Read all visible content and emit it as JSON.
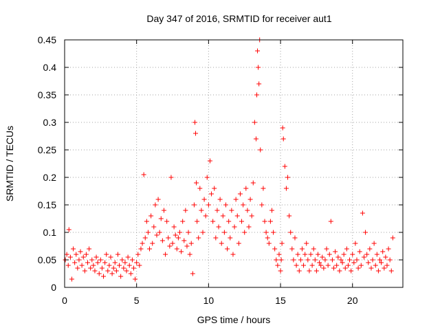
{
  "chart_data": {
    "type": "scatter",
    "title": "Day 347 of 2016, SRMTID for receiver aut1",
    "xlabel": "GPS time / hours",
    "ylabel": "SRMTID / TECUs",
    "xlim": [
      0,
      23.5
    ],
    "ylim": [
      0,
      0.45
    ],
    "xticks": [
      0,
      5,
      10,
      15,
      20
    ],
    "yticks": [
      0,
      0.05,
      0.1,
      0.15,
      0.2,
      0.25,
      0.3,
      0.35,
      0.4,
      0.45
    ],
    "xtick_labels": [
      "0",
      "5",
      "10",
      "15",
      "20"
    ],
    "ytick_labels": [
      "0",
      "0.05",
      "0.1",
      "0.15",
      "0.2",
      "0.25",
      "0.3",
      "0.35",
      "0.4",
      "0.45"
    ],
    "grid": true,
    "marker": "+",
    "color": "#ff0000",
    "series": [
      {
        "name": "aut1",
        "x": [
          0.05,
          0.15,
          0.25,
          0.3,
          0.4,
          0.5,
          0.6,
          0.7,
          0.8,
          0.9,
          1.0,
          1.1,
          1.2,
          1.3,
          1.4,
          1.5,
          1.6,
          1.7,
          1.8,
          1.9,
          2.0,
          2.1,
          2.2,
          2.3,
          2.4,
          2.5,
          2.6,
          2.7,
          2.8,
          2.9,
          3.0,
          3.1,
          3.2,
          3.3,
          3.4,
          3.5,
          3.6,
          3.7,
          3.8,
          3.9,
          4.0,
          4.1,
          4.2,
          4.3,
          4.4,
          4.5,
          4.6,
          4.7,
          4.8,
          4.9,
          5.0,
          5.1,
          5.2,
          5.3,
          5.4,
          5.5,
          5.6,
          5.7,
          5.8,
          5.9,
          6.0,
          6.1,
          6.2,
          6.3,
          6.4,
          6.5,
          6.6,
          6.7,
          6.8,
          6.9,
          7.0,
          7.1,
          7.2,
          7.3,
          7.4,
          7.5,
          7.6,
          7.7,
          7.8,
          7.9,
          8.0,
          8.1,
          8.2,
          8.3,
          8.4,
          8.5,
          8.6,
          8.7,
          8.8,
          8.9,
          9.0,
          9.05,
          9.1,
          9.15,
          9.2,
          9.3,
          9.4,
          9.5,
          9.6,
          9.7,
          9.8,
          9.9,
          10.0,
          10.1,
          10.2,
          10.3,
          10.4,
          10.5,
          10.6,
          10.7,
          10.8,
          10.9,
          11.0,
          11.1,
          11.2,
          11.3,
          11.4,
          11.5,
          11.6,
          11.7,
          11.8,
          11.9,
          12.0,
          12.1,
          12.2,
          12.3,
          12.4,
          12.5,
          12.6,
          12.7,
          12.8,
          12.9,
          13.0,
          13.1,
          13.2,
          13.3,
          13.35,
          13.4,
          13.45,
          13.5,
          13.55,
          13.6,
          13.7,
          13.8,
          13.9,
          14.0,
          14.1,
          14.2,
          14.3,
          14.4,
          14.5,
          14.6,
          14.7,
          14.8,
          14.9,
          15.0,
          15.05,
          15.1,
          15.15,
          15.2,
          15.3,
          15.4,
          15.5,
          15.6,
          15.7,
          15.8,
          15.9,
          16.0,
          16.1,
          16.2,
          16.3,
          16.4,
          16.5,
          16.6,
          16.7,
          16.8,
          16.9,
          17.0,
          17.1,
          17.2,
          17.3,
          17.4,
          17.5,
          17.6,
          17.7,
          17.8,
          17.9,
          18.0,
          18.1,
          18.2,
          18.3,
          18.4,
          18.5,
          18.6,
          18.7,
          18.8,
          18.9,
          19.0,
          19.1,
          19.2,
          19.3,
          19.4,
          19.5,
          19.6,
          19.7,
          19.8,
          19.9,
          20.0,
          20.1,
          20.2,
          20.3,
          20.4,
          20.5,
          20.6,
          20.7,
          20.8,
          20.9,
          21.0,
          21.1,
          21.2,
          21.3,
          21.4,
          21.5,
          21.6,
          21.7,
          21.8,
          21.9,
          22.0,
          22.1,
          22.2,
          22.3,
          22.4,
          22.5,
          22.6,
          22.7,
          22.8
        ],
        "y": [
          0.05,
          0.06,
          0.04,
          0.105,
          0.055,
          0.015,
          0.07,
          0.045,
          0.06,
          0.035,
          0.05,
          0.065,
          0.04,
          0.055,
          0.03,
          0.06,
          0.045,
          0.07,
          0.035,
          0.05,
          0.04,
          0.03,
          0.055,
          0.045,
          0.025,
          0.05,
          0.035,
          0.02,
          0.045,
          0.06,
          0.03,
          0.04,
          0.055,
          0.025,
          0.035,
          0.045,
          0.03,
          0.06,
          0.04,
          0.02,
          0.05,
          0.035,
          0.045,
          0.03,
          0.055,
          0.04,
          0.025,
          0.05,
          0.035,
          0.015,
          0.045,
          0.06,
          0.04,
          0.07,
          0.08,
          0.205,
          0.09,
          0.12,
          0.1,
          0.07,
          0.13,
          0.08,
          0.11,
          0.15,
          0.095,
          0.16,
          0.1,
          0.125,
          0.085,
          0.14,
          0.06,
          0.12,
          0.09,
          0.075,
          0.2,
          0.08,
          0.11,
          0.095,
          0.07,
          0.09,
          0.1,
          0.065,
          0.12,
          0.085,
          0.14,
          0.075,
          0.1,
          0.06,
          0.08,
          0.025,
          0.15,
          0.3,
          0.28,
          0.19,
          0.12,
          0.09,
          0.18,
          0.14,
          0.1,
          0.16,
          0.13,
          0.2,
          0.15,
          0.23,
          0.17,
          0.12,
          0.18,
          0.09,
          0.14,
          0.11,
          0.16,
          0.08,
          0.13,
          0.1,
          0.15,
          0.07,
          0.12,
          0.09,
          0.14,
          0.06,
          0.11,
          0.16,
          0.13,
          0.08,
          0.17,
          0.12,
          0.15,
          0.1,
          0.18,
          0.14,
          0.11,
          0.16,
          0.13,
          0.19,
          0.3,
          0.27,
          0.35,
          0.43,
          0.4,
          0.37,
          0.45,
          0.25,
          0.15,
          0.18,
          0.12,
          0.1,
          0.09,
          0.08,
          0.12,
          0.14,
          0.1,
          0.07,
          0.05,
          0.04,
          0.06,
          0.03,
          0.05,
          0.08,
          0.29,
          0.27,
          0.22,
          0.18,
          0.2,
          0.13,
          0.1,
          0.07,
          0.05,
          0.09,
          0.04,
          0.06,
          0.03,
          0.05,
          0.07,
          0.04,
          0.06,
          0.08,
          0.05,
          0.03,
          0.06,
          0.04,
          0.07,
          0.05,
          0.03,
          0.06,
          0.045,
          0.04,
          0.055,
          0.035,
          0.05,
          0.07,
          0.04,
          0.06,
          0.12,
          0.05,
          0.035,
          0.065,
          0.04,
          0.055,
          0.03,
          0.05,
          0.045,
          0.06,
          0.035,
          0.07,
          0.04,
          0.05,
          0.03,
          0.06,
          0.045,
          0.08,
          0.05,
          0.035,
          0.065,
          0.04,
          0.135,
          0.055,
          0.1,
          0.06,
          0.045,
          0.07,
          0.035,
          0.05,
          0.08,
          0.04,
          0.06,
          0.03,
          0.05,
          0.045,
          0.065,
          0.035,
          0.055,
          0.04,
          0.07,
          0.05,
          0.03,
          0.09
        ]
      }
    ]
  }
}
